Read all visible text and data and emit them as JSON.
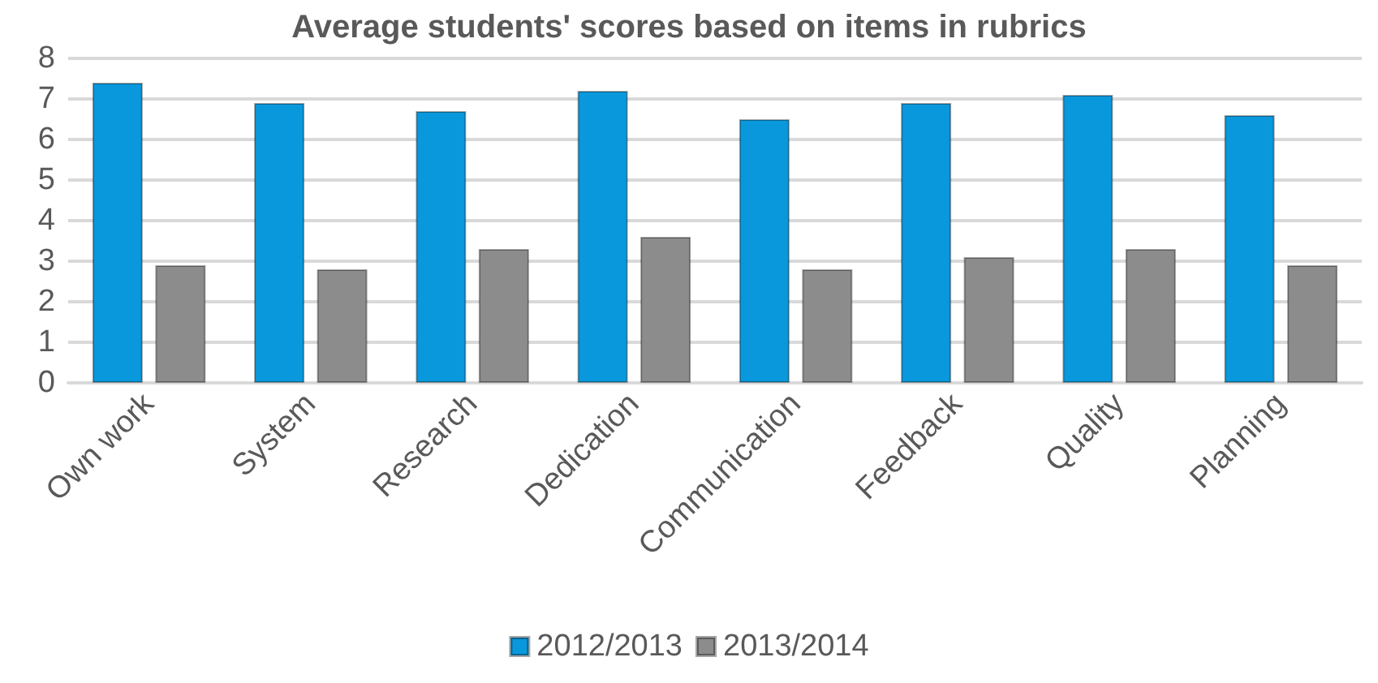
{
  "chart_data": {
    "type": "bar",
    "title": "Average students' scores based on items in rubrics",
    "categories": [
      "Own work",
      "System",
      "Research",
      "Dedication",
      "Communication",
      "Feedback",
      "Quality",
      "Planning"
    ],
    "series": [
      {
        "name": "2012/2013",
        "color": "#0a98dc",
        "values": [
          7.4,
          6.9,
          6.7,
          7.2,
          6.5,
          6.9,
          7.1,
          6.6
        ]
      },
      {
        "name": "2013/2014",
        "color": "#8c8c8c",
        "values": [
          2.9,
          2.8,
          3.3,
          3.6,
          2.8,
          3.1,
          3.3,
          2.9
        ]
      }
    ],
    "ylim": [
      0,
      8
    ],
    "yticks": [
      0,
      1,
      2,
      3,
      4,
      5,
      6,
      7,
      8
    ],
    "grid": "y",
    "legend": "bottom"
  }
}
